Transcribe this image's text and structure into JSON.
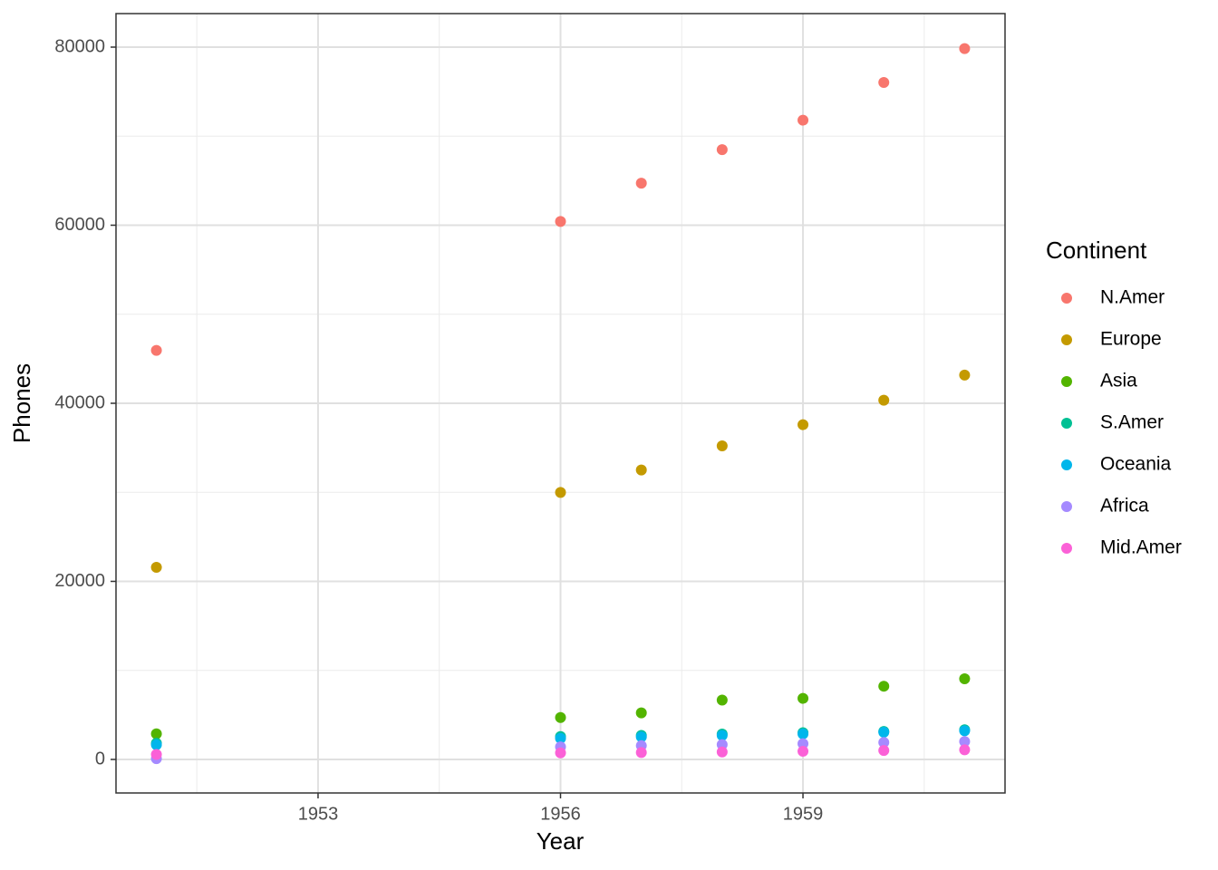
{
  "chart_data": {
    "type": "scatter",
    "x_label": "Year",
    "y_label": "Phones",
    "legend_title": "Continent",
    "legend_position": "right",
    "grid": true,
    "x": [
      1951,
      1956,
      1957,
      1958,
      1959,
      1960,
      1961
    ],
    "series": [
      {
        "name": "N.Amer",
        "color": "#F8766D",
        "values": [
          45939,
          60423,
          64721,
          68484,
          71799,
          76036,
          79831
        ]
      },
      {
        "name": "Europe",
        "color": "#C49A00",
        "values": [
          21574,
          29990,
          32510,
          35218,
          37598,
          40341,
          43173
        ]
      },
      {
        "name": "Asia",
        "color": "#53B400",
        "values": [
          2876,
          4708,
          5230,
          6662,
          6856,
          8220,
          9053
        ]
      },
      {
        "name": "S.Amer",
        "color": "#00C094",
        "values": [
          1815,
          2568,
          2695,
          2845,
          3000,
          3145,
          3338
        ]
      },
      {
        "name": "Oceania",
        "color": "#00B6EB",
        "values": [
          1646,
          2366,
          2526,
          2691,
          2868,
          3054,
          3224
        ]
      },
      {
        "name": "Africa",
        "color": "#A58AFF",
        "values": [
          89,
          1411,
          1546,
          1663,
          1769,
          1905,
          2005
        ]
      },
      {
        "name": "Mid.Amer",
        "color": "#FB61D7",
        "values": [
          555,
          733,
          773,
          836,
          911,
          1008,
          1076
        ]
      }
    ],
    "xlim": [
      1950.5,
      1961.5
    ],
    "xticks": [
      1953,
      1956,
      1959
    ],
    "ylim": [
      -3766,
      83766
    ],
    "yticks": [
      0,
      20000,
      40000,
      60000,
      80000
    ]
  }
}
